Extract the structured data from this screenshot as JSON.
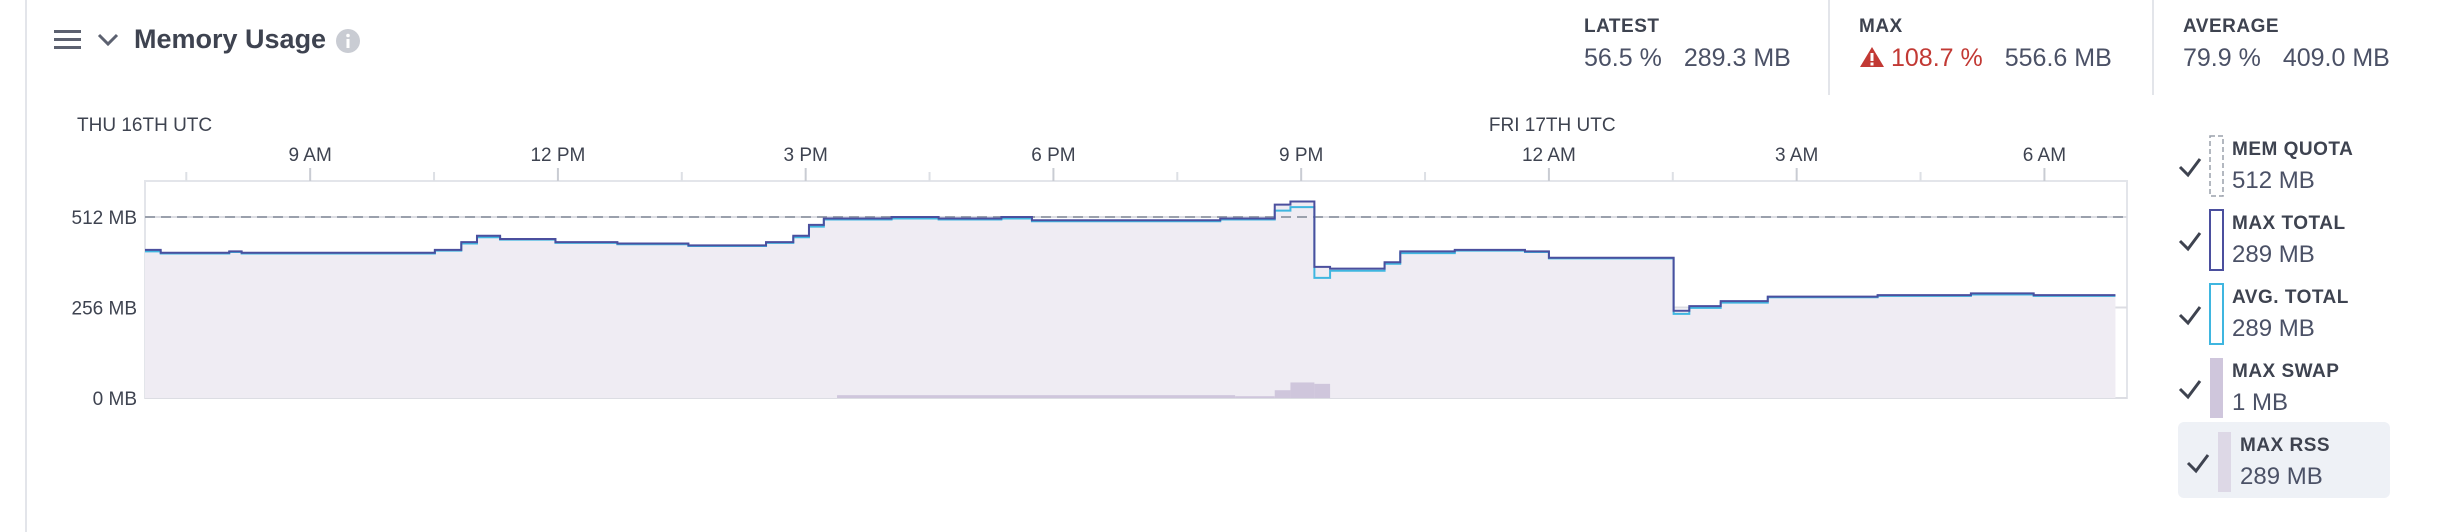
{
  "header": {
    "title": "Memory Usage",
    "stats": [
      {
        "label": "LATEST",
        "values": [
          "56.5 %",
          "289.3 MB"
        ]
      },
      {
        "label": "MAX",
        "values": [
          "108.7 %",
          "556.6 MB"
        ],
        "alert": true
      },
      {
        "label": "AVERAGE",
        "values": [
          "79.9 %",
          "409.0 MB"
        ]
      }
    ]
  },
  "chart_data": {
    "type": "step",
    "date_labels": [
      {
        "x": 7.5,
        "label": "THU 16TH UTC"
      },
      {
        "x": 24,
        "label": "FRI 17TH UTC"
      }
    ],
    "xlim": [
      7,
      31
    ],
    "xticks": [
      {
        "value": 9,
        "label": "9 AM"
      },
      {
        "value": 12,
        "label": "12 PM"
      },
      {
        "value": 15,
        "label": "3 PM"
      },
      {
        "value": 18,
        "label": "6 PM"
      },
      {
        "value": 21,
        "label": "9 PM"
      },
      {
        "value": 24,
        "label": "12 AM"
      },
      {
        "value": 27,
        "label": "3 AM"
      },
      {
        "value": 30,
        "label": "6 AM"
      }
    ],
    "ylim": [
      0,
      614
    ],
    "yticks": [
      {
        "value": 0,
        "label": "0 MB"
      },
      {
        "value": 256,
        "label": "256 MB"
      },
      {
        "value": 512,
        "label": "512 MB"
      }
    ],
    "x": [
      7.0,
      7.19,
      8.02,
      8.17,
      10.51,
      10.83,
      11.02,
      11.3,
      11.97,
      12.72,
      13.58,
      14.52,
      14.85,
      15.04,
      15.22,
      16.04,
      16.61,
      17.37,
      17.74,
      20.02,
      20.68,
      20.87,
      21.16,
      21.35,
      22.01,
      22.2,
      22.86,
      23.71,
      24.0,
      25.51,
      25.7,
      26.08,
      26.65,
      27.98,
      29.11,
      29.87,
      30.86
    ],
    "series": [
      {
        "name": "MEM QUOTA",
        "legend_value": "512 MB",
        "color": "#9aa0ac",
        "style": "quota",
        "value": 512
      },
      {
        "name": "MAX TOTAL",
        "legend_value": "289 MB",
        "color": "#4b4f9e",
        "style": "line",
        "values": [
          419,
          411,
          415,
          411,
          419,
          441,
          459,
          450,
          441,
          437,
          432,
          441,
          459,
          490,
          508,
          512,
          508,
          512,
          503,
          508,
          547,
          556,
          371,
          366,
          384,
          415,
          419,
          415,
          397,
          247,
          260,
          274,
          287,
          291,
          296,
          291,
          291
        ]
      },
      {
        "name": "AVG. TOTAL",
        "legend_value": "289 MB",
        "color": "#3fb6e0",
        "style": "line",
        "values": [
          415,
          409,
          413,
          409,
          417,
          437,
          455,
          448,
          439,
          435,
          430,
          439,
          455,
          485,
          505,
          508,
          505,
          508,
          500,
          505,
          530,
          540,
          340,
          360,
          380,
          410,
          417,
          413,
          395,
          238,
          255,
          270,
          285,
          289,
          293,
          289,
          289
        ]
      },
      {
        "name": "MAX SWAP",
        "legend_value": "1 MB",
        "color": "#cfc6dc",
        "style": "bars",
        "x": [
          15.38,
          20.2,
          20.68,
          20.87,
          21.16,
          21.35
        ],
        "values": [
          8,
          5,
          22,
          44,
          40,
          0
        ]
      },
      {
        "name": "MAX RSS",
        "legend_value": "289 MB",
        "color": "#efecf3",
        "style": "area",
        "selected": true,
        "values": [
          419,
          411,
          415,
          411,
          419,
          441,
          459,
          450,
          441,
          437,
          432,
          441,
          459,
          490,
          508,
          512,
          508,
          512,
          503,
          508,
          547,
          556,
          371,
          366,
          384,
          415,
          419,
          415,
          397,
          247,
          260,
          274,
          287,
          291,
          296,
          291,
          291
        ]
      }
    ]
  }
}
